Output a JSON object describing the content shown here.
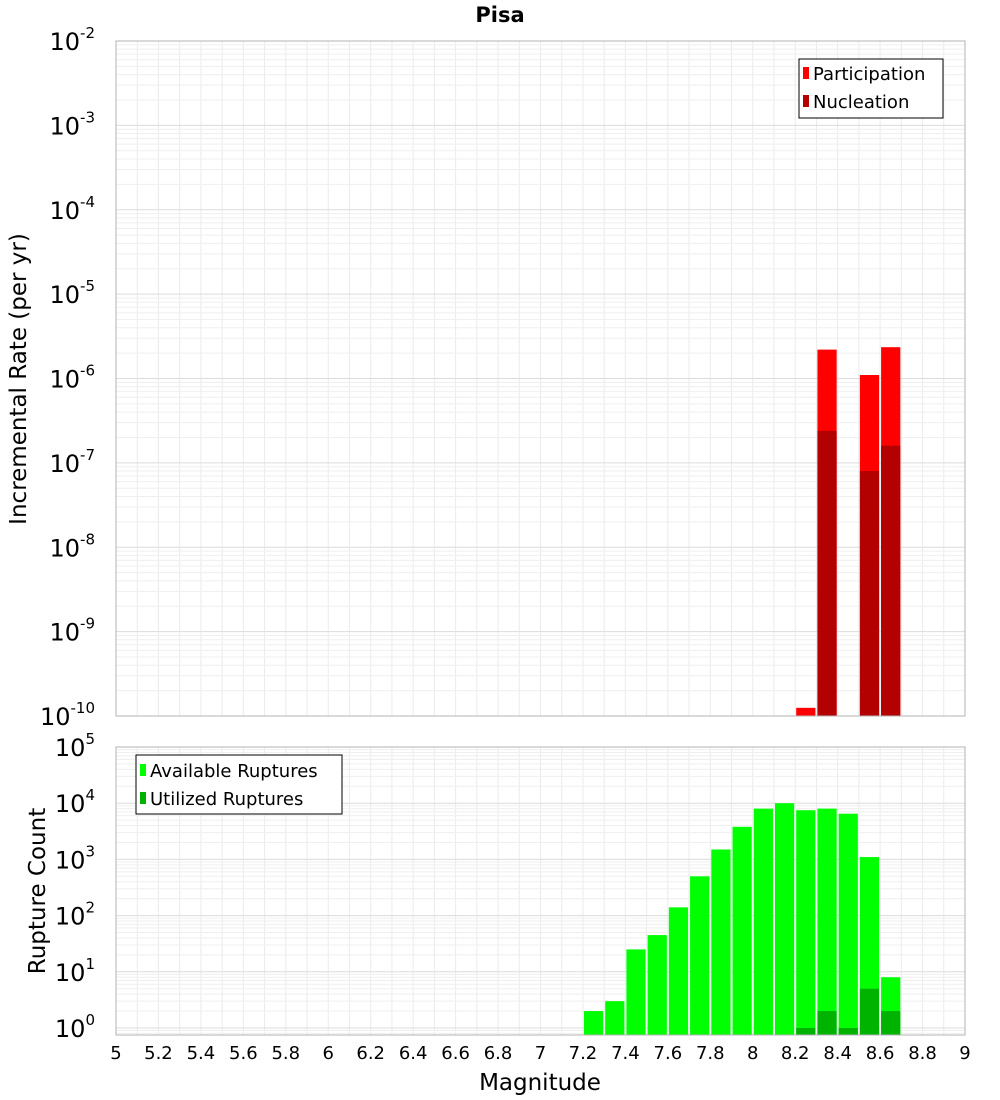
{
  "chart_data": [
    {
      "type": "bar",
      "title": "Pisa",
      "xlabel": "",
      "ylabel": "Incremental Rate (per yr)",
      "yscale": "log",
      "ylim": [
        1e-10,
        0.01
      ],
      "xlim": [
        5,
        9
      ],
      "grid": true,
      "legend_position": "top-right",
      "yticks": [
        {
          "base": "10",
          "exp": "-10"
        },
        {
          "base": "10",
          "exp": "-9"
        },
        {
          "base": "10",
          "exp": "-8"
        },
        {
          "base": "10",
          "exp": "-7"
        },
        {
          "base": "10",
          "exp": "-6"
        },
        {
          "base": "10",
          "exp": "-5"
        },
        {
          "base": "10",
          "exp": "-4"
        },
        {
          "base": "10",
          "exp": "-3"
        },
        {
          "base": "10",
          "exp": "-2"
        }
      ],
      "series": [
        {
          "name": "Participation",
          "color": "#ff0000",
          "points": [
            [
              8.25,
              1.25e-10
            ],
            [
              8.35,
              2.2e-06
            ],
            [
              8.55,
              1.1e-06
            ],
            [
              8.65,
              2.35e-06
            ]
          ]
        },
        {
          "name": "Nucleation",
          "color": "#b30000",
          "points": [
            [
              8.35,
              2.4e-07
            ],
            [
              8.55,
              8e-08
            ],
            [
              8.65,
              1.6e-07
            ]
          ]
        }
      ]
    },
    {
      "type": "bar",
      "title": "",
      "xlabel": "Magnitude",
      "ylabel": "Rupture Count",
      "yscale": "log",
      "ylim": [
        0.75,
        100000
      ],
      "xlim": [
        5,
        9
      ],
      "grid": true,
      "legend_position": "top-left",
      "xticks": [
        "5",
        "5.2",
        "5.4",
        "5.6",
        "5.8",
        "6",
        "6.2",
        "6.4",
        "6.6",
        "6.8",
        "7",
        "7.2",
        "7.4",
        "7.6",
        "7.8",
        "8",
        "8.2",
        "8.4",
        "8.6",
        "8.8",
        "9"
      ],
      "yticks": [
        {
          "base": "10",
          "exp": "0"
        },
        {
          "base": "10",
          "exp": "1"
        },
        {
          "base": "10",
          "exp": "2"
        },
        {
          "base": "10",
          "exp": "3"
        },
        {
          "base": "10",
          "exp": "4"
        },
        {
          "base": "10",
          "exp": "5"
        }
      ],
      "series": [
        {
          "name": "Available Ruptures",
          "color": "#00ff00",
          "points": [
            [
              7.25,
              2
            ],
            [
              7.35,
              3
            ],
            [
              7.45,
              25
            ],
            [
              7.55,
              45
            ],
            [
              7.65,
              140
            ],
            [
              7.75,
              500
            ],
            [
              7.85,
              1500
            ],
            [
              7.95,
              3800
            ],
            [
              8.05,
              8000
            ],
            [
              8.15,
              10000
            ],
            [
              8.25,
              7500
            ],
            [
              8.35,
              8000
            ],
            [
              8.45,
              6500
            ],
            [
              8.55,
              1100
            ],
            [
              8.65,
              8
            ]
          ]
        },
        {
          "name": "Utilized Ruptures",
          "color": "#00b300",
          "points": [
            [
              8.25,
              1
            ],
            [
              8.35,
              2
            ],
            [
              8.45,
              1
            ],
            [
              8.55,
              5
            ],
            [
              8.65,
              2
            ]
          ]
        }
      ]
    }
  ]
}
